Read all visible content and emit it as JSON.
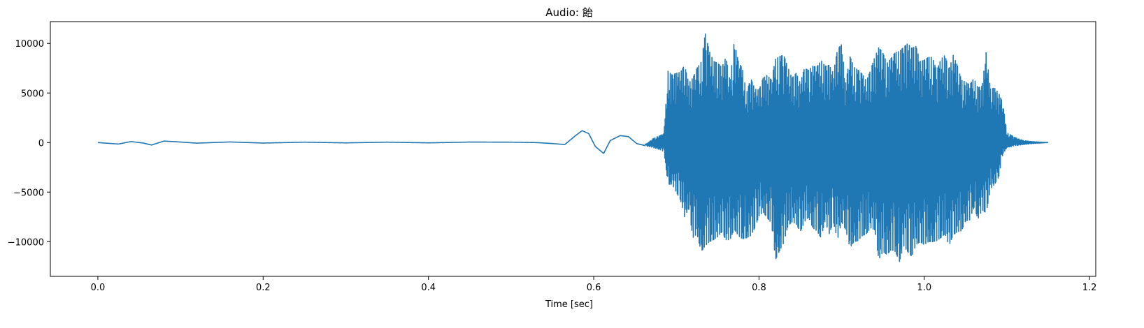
{
  "chart_data": {
    "type": "line",
    "title": "Audio: 飴",
    "xlabel": "Time [sec]",
    "ylabel": "",
    "xlim": [
      -0.0575,
      1.2075
    ],
    "ylim": [
      -13500,
      12200
    ],
    "xticks": [
      0.0,
      0.2,
      0.4,
      0.6,
      0.8,
      1.0,
      1.2
    ],
    "xtick_labels": [
      "0.0",
      "0.2",
      "0.4",
      "0.6",
      "0.8",
      "1.0",
      "1.2"
    ],
    "yticks": [
      -10000,
      -5000,
      0,
      5000,
      10000
    ],
    "ytick_labels": [
      "−10000",
      "−5000",
      "0",
      "5000",
      "10000"
    ],
    "grid": false,
    "line_color": "#1f77b4",
    "series": [
      {
        "name": "",
        "x": [
          0.0,
          0.025,
          0.04,
          0.055,
          0.065,
          0.08,
          0.095,
          0.12,
          0.16,
          0.2,
          0.25,
          0.3,
          0.35,
          0.4,
          0.45,
          0.5,
          0.53,
          0.55,
          0.565,
          0.578,
          0.586,
          0.594,
          0.602,
          0.612,
          0.62,
          0.632,
          0.642,
          0.652,
          0.662,
          0.672,
          0.68,
          0.685,
          0.69,
          0.695,
          0.7,
          0.705,
          0.71,
          0.715,
          0.72,
          0.725,
          0.73,
          0.735,
          0.74,
          0.745,
          0.75,
          0.755,
          0.76,
          0.765,
          0.77,
          0.775,
          0.78,
          0.785,
          0.79,
          0.795,
          0.8,
          0.805,
          0.81,
          0.815,
          0.82,
          0.825,
          0.83,
          0.835,
          0.84,
          0.845,
          0.85,
          0.855,
          0.86,
          0.865,
          0.87,
          0.875,
          0.88,
          0.885,
          0.89,
          0.895,
          0.9,
          0.905,
          0.91,
          0.915,
          0.92,
          0.925,
          0.93,
          0.935,
          0.94,
          0.945,
          0.95,
          0.955,
          0.96,
          0.965,
          0.97,
          0.975,
          0.98,
          0.985,
          0.99,
          0.995,
          1.0,
          1.005,
          1.01,
          1.015,
          1.02,
          1.025,
          1.03,
          1.035,
          1.04,
          1.045,
          1.05,
          1.055,
          1.06,
          1.065,
          1.07,
          1.075,
          1.08,
          1.085,
          1.09,
          1.095,
          1.1,
          1.11,
          1.12,
          1.13,
          1.15
        ],
        "upper": [
          0,
          -150,
          100,
          -50,
          -250,
          150,
          80,
          -60,
          60,
          -50,
          40,
          -30,
          40,
          -30,
          50,
          40,
          0,
          -100,
          -200,
          700,
          1200,
          900,
          -400,
          -1100,
          200,
          700,
          600,
          -100,
          -300,
          400,
          700,
          900,
          7200,
          6800,
          7000,
          7100,
          7800,
          6000,
          6500,
          7500,
          8100,
          11000,
          9200,
          8200,
          8000,
          7600,
          8600,
          6200,
          10200,
          8200,
          7400,
          5000,
          6500,
          5400,
          5300,
          6500,
          6800,
          6300,
          8400,
          8700,
          8800,
          7600,
          6500,
          7000,
          6000,
          7500,
          7300,
          7700,
          7600,
          8300,
          7700,
          7800,
          7000,
          9400,
          9900,
          6000,
          8700,
          7600,
          7300,
          6900,
          6200,
          7300,
          8600,
          9600,
          9000,
          8000,
          8500,
          9100,
          9200,
          9600,
          10000,
          9500,
          9700,
          8200,
          8300,
          8600,
          8600,
          7200,
          8400,
          8800,
          7400,
          8800,
          7800,
          6300,
          6100,
          5800,
          6500,
          5500,
          5700,
          9200,
          5400,
          5500,
          5000,
          4000,
          1000,
          500,
          200,
          100,
          0
        ],
        "lower": [
          0,
          -150,
          100,
          -50,
          -250,
          150,
          80,
          -60,
          60,
          -50,
          40,
          -30,
          40,
          -30,
          50,
          40,
          0,
          -100,
          -200,
          700,
          1200,
          900,
          -400,
          -1100,
          200,
          700,
          600,
          -100,
          -300,
          -500,
          -700,
          -900,
          -4200,
          -4200,
          -5000,
          -5800,
          -7500,
          -6600,
          -9600,
          -9200,
          -11000,
          -10400,
          -10000,
          -9800,
          -9500,
          -9000,
          -9800,
          -9800,
          -8700,
          -9400,
          -9700,
          -9600,
          -9400,
          -8600,
          -7400,
          -7000,
          -7600,
          -8100,
          -11800,
          -10900,
          -10100,
          -8400,
          -8000,
          -8200,
          -9000,
          -8000,
          -7500,
          -8600,
          -8900,
          -9600,
          -7900,
          -9200,
          -8000,
          -9800,
          -8000,
          -8800,
          -10600,
          -10000,
          -9900,
          -9400,
          -9200,
          -8600,
          -8800,
          -11800,
          -11000,
          -11300,
          -10800,
          -11000,
          -12000,
          -10400,
          -11000,
          -11500,
          -10300,
          -10000,
          -10300,
          -10000,
          -10000,
          -9900,
          -9600,
          -9200,
          -10400,
          -9300,
          -9000,
          -8900,
          -7900,
          -7800,
          -6500,
          -7700,
          -6800,
          -7100,
          -4700,
          -4200,
          -3500,
          -1200,
          -500,
          -300,
          -200,
          -100,
          0
        ]
      }
    ]
  }
}
